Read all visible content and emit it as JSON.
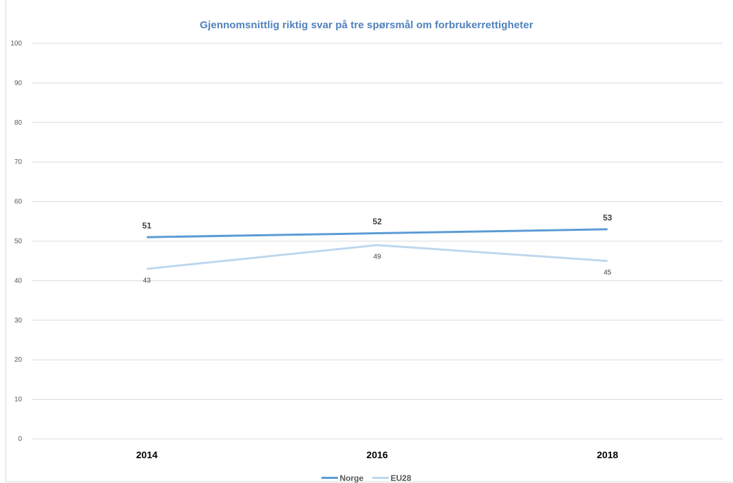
{
  "chart_data": {
    "type": "line",
    "title": "Gjennomsnittlig  riktig svar på tre spørsmål  om forbrukerrettigheter",
    "categories": [
      "2014",
      "2016",
      "2018"
    ],
    "ylim": [
      0,
      100
    ],
    "yticks": [
      "0",
      "10",
      "20",
      "30",
      "40",
      "50",
      "60",
      "70",
      "80",
      "90",
      "100"
    ],
    "grid": true,
    "legend_position": "bottom",
    "series": [
      {
        "name": "Norge",
        "values": [
          51,
          52,
          53
        ],
        "labels": [
          "51",
          "52",
          "53"
        ],
        "color": "#5b9bd5"
      },
      {
        "name": "EU28",
        "values": [
          43,
          49,
          45
        ],
        "labels": [
          "43",
          "49",
          "45"
        ],
        "color": "#bdd7ee"
      }
    ]
  }
}
